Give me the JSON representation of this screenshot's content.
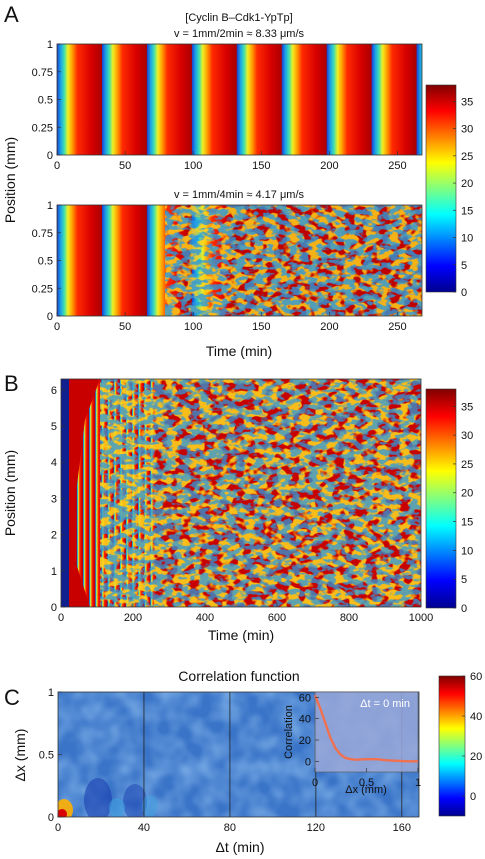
{
  "panels": [
    {
      "id": "A",
      "label": "A"
    },
    {
      "id": "B",
      "label": "B"
    },
    {
      "id": "C",
      "label": "C"
    }
  ],
  "chart_data": [
    {
      "type": "heatmap",
      "panel": "A",
      "title": "[Cyclin B–Cdk1-YpTp]",
      "subtitle": "v = 1mm/2min ≈ 8.33 μm/s",
      "ylabel": "Position (mm)",
      "xlabel": "",
      "xlim": [
        0,
        268
      ],
      "ylim": [
        0,
        1
      ],
      "xticks": [
        0,
        50,
        100,
        150,
        200,
        250
      ],
      "yticks": [
        0,
        0.25,
        0.5,
        0.75,
        1
      ],
      "yticklabels": [
        "0",
        "0.25",
        "0.5",
        "0.75",
        "1"
      ],
      "wave_period_min": 33,
      "pattern": "planar traveling waves"
    },
    {
      "type": "heatmap",
      "panel": "A",
      "subtitle": "v = 1mm/4min ≈ 4.17 μm/s",
      "ylabel": "",
      "xlabel": "Time (min)",
      "xlim": [
        0,
        268
      ],
      "ylim": [
        0,
        1
      ],
      "xticks": [
        0,
        50,
        100,
        150,
        200,
        250
      ],
      "yticks": [
        0,
        0.25,
        0.5,
        0.75,
        1
      ],
      "yticklabels": [
        "0",
        "0.25",
        "0.5",
        "0.75",
        "1"
      ],
      "pattern": "planar waves breaking into irregular patterns after ~100 min"
    },
    {
      "type": "heatmap",
      "panel": "B",
      "xlabel": "Time (min)",
      "ylabel": "Position (mm)",
      "xlim": [
        0,
        1000
      ],
      "ylim": [
        0,
        6.3
      ],
      "xticks": [
        0,
        200,
        400,
        600,
        800,
        1000
      ],
      "yticks": [
        0,
        1,
        2,
        3,
        4,
        5,
        6
      ],
      "pattern": "waves from origin, then spatiotemporal chaos"
    },
    {
      "type": "heatmap",
      "panel": "C",
      "title": "Correlation function",
      "xlabel": "Δt (min)",
      "ylabel": "Δx (mm)",
      "xlim": [
        0,
        168
      ],
      "ylim": [
        0,
        1
      ],
      "xticks": [
        0,
        40,
        80,
        120,
        160
      ],
      "yticks": [
        0,
        0.5,
        1
      ],
      "vlines": [
        40,
        80,
        120,
        160
      ],
      "inset": {
        "type": "line",
        "label": "Δt = 0 min",
        "xlabel": "Δx (mm)",
        "ylabel": "Correlation",
        "xlim": [
          0,
          1
        ],
        "ylim": [
          -10,
          65
        ],
        "xticks": [
          0,
          0.5,
          1
        ],
        "yticks": [
          0,
          20,
          40,
          60
        ],
        "x": [
          0,
          0.05,
          0.1,
          0.15,
          0.2,
          0.25,
          0.3,
          0.35,
          0.4,
          0.5,
          0.6,
          0.7,
          0.8,
          0.9,
          1.0
        ],
        "y": [
          62,
          50,
          36,
          22,
          12,
          6,
          3,
          2,
          1.5,
          2,
          2,
          1,
          0.5,
          0,
          0
        ]
      }
    }
  ],
  "colorbars": [
    {
      "panel": "A",
      "range": [
        0,
        38
      ],
      "ticks": [
        0,
        5,
        10,
        15,
        20,
        25,
        30,
        35
      ]
    },
    {
      "panel": "B",
      "range": [
        0,
        38
      ],
      "ticks": [
        0,
        5,
        10,
        15,
        20,
        25,
        30,
        35
      ]
    },
    {
      "panel": "C",
      "range": [
        -10,
        60
      ],
      "ticks": [
        0,
        20,
        40,
        60
      ]
    }
  ]
}
